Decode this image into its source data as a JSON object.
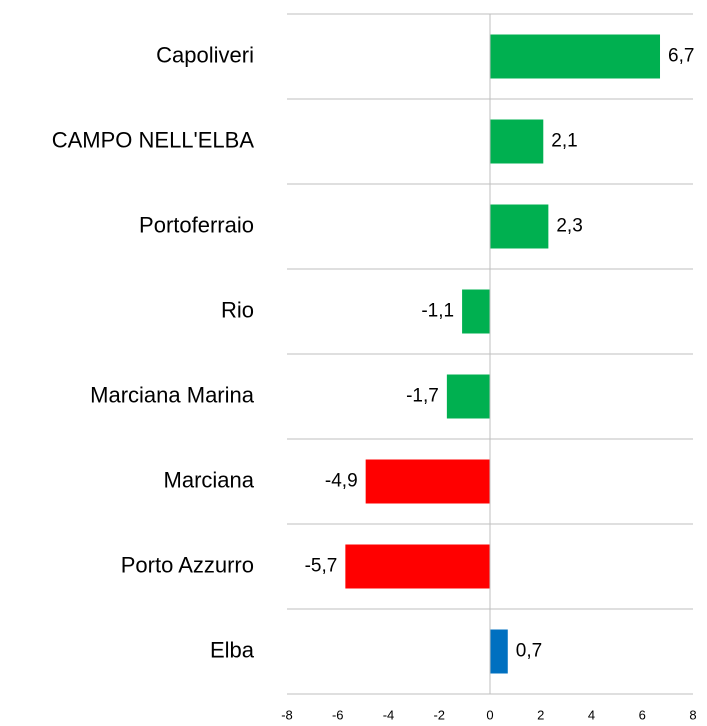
{
  "chart_data": {
    "type": "barh",
    "categories": [
      "Capoliveri",
      "CAMPO NELL'ELBA",
      "Portoferraio",
      "Rio",
      "Marciana Marina",
      "Marciana",
      "Porto Azzurro",
      "Elba"
    ],
    "values": [
      6.7,
      2.1,
      2.3,
      -1.1,
      -1.7,
      -4.9,
      -5.7,
      0.7
    ],
    "value_labels": [
      "6,7",
      "2,1",
      "2,3",
      "-1,1",
      "-1,7",
      "-4,9",
      "-5,7",
      "0,7"
    ],
    "colors": [
      "#00b050",
      "#00b050",
      "#00b050",
      "#00b050",
      "#00b050",
      "#ff0000",
      "#ff0000",
      "#0070c0"
    ],
    "xlim": [
      -8,
      8
    ],
    "xticks": [
      -8,
      -6,
      -4,
      -2,
      0,
      2,
      4,
      6,
      8
    ],
    "grid": false
  }
}
